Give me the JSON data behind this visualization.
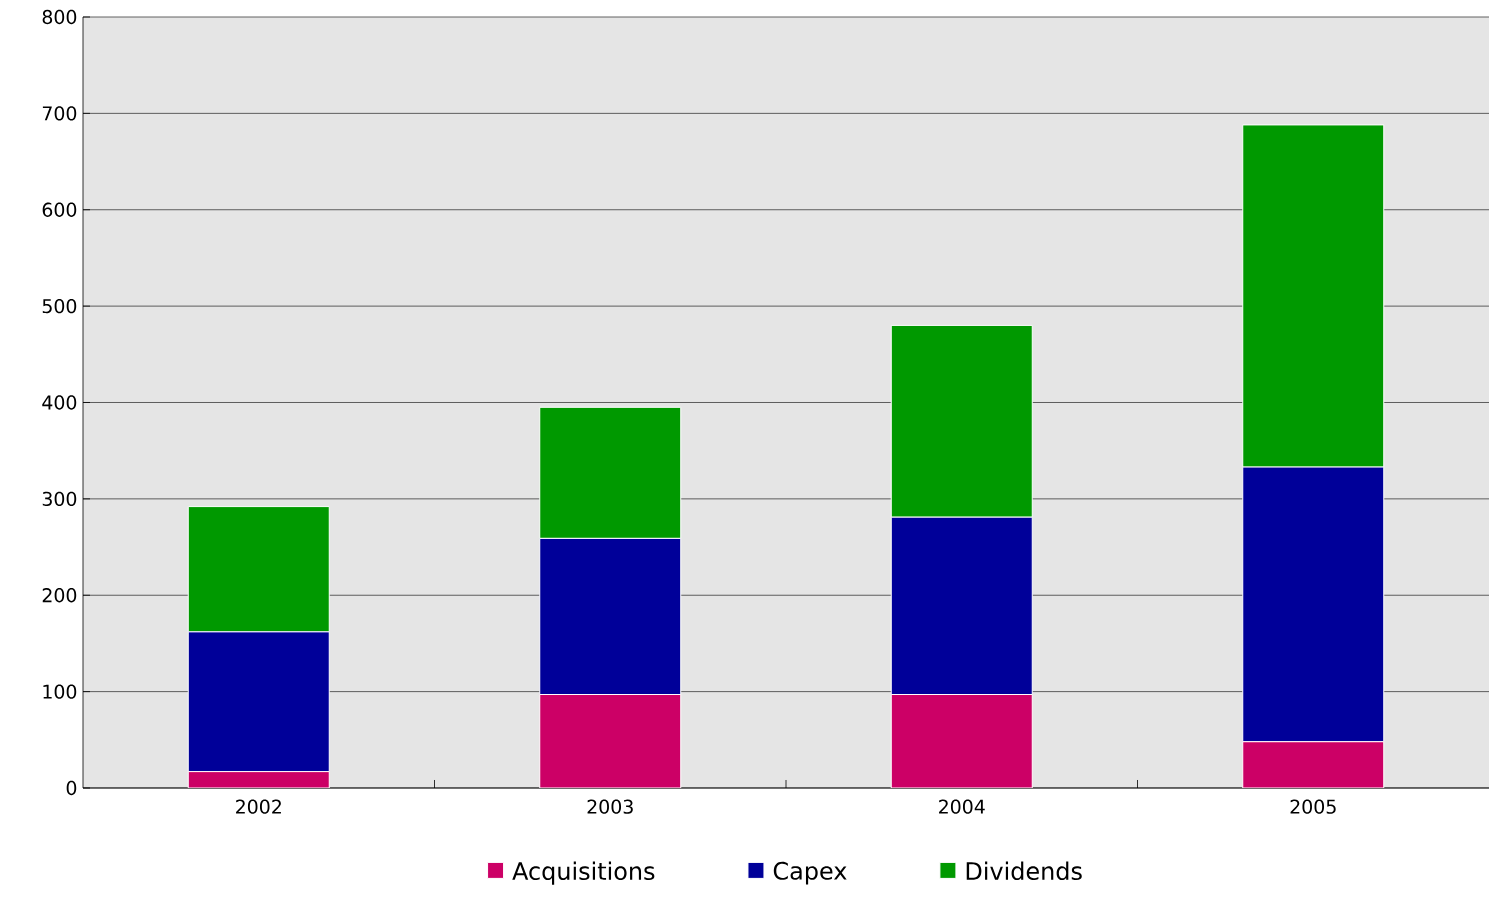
{
  "chart_data": {
    "type": "bar",
    "stacked": true,
    "categories": [
      "2002",
      "2003",
      "2004",
      "2005"
    ],
    "series": [
      {
        "name": "Acquisitions",
        "color": "#cc0066",
        "values": [
          17,
          97,
          97,
          48
        ]
      },
      {
        "name": "Capex",
        "color": "#000099",
        "values": [
          145,
          162,
          184,
          285
        ]
      },
      {
        "name": "Dividends",
        "color": "#009900",
        "values": [
          130,
          136,
          199,
          355
        ]
      }
    ],
    "ylim": [
      0,
      800
    ],
    "yticks": [
      0,
      100,
      200,
      300,
      400,
      500,
      600,
      700,
      800
    ],
    "grid": "y",
    "legend": "bottom"
  }
}
